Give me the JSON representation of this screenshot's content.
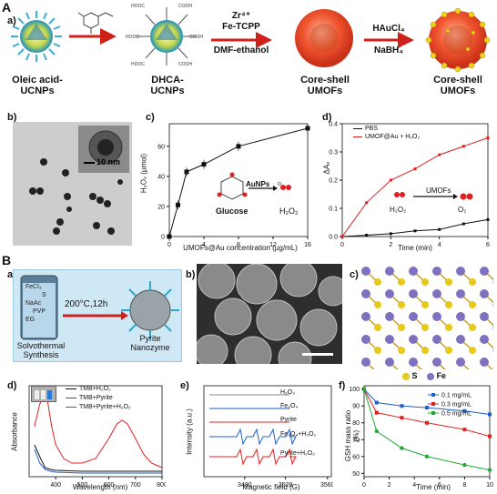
{
  "section_A": {
    "label": "A",
    "panel_label": "a)",
    "steps": [
      "Oleic acid-\nUCNPs",
      "DHCA-\nUCNPs",
      "Core-shell\nUMOFs",
      "Core-shell\nUMOFs"
    ],
    "step1_labels": [
      "Oleic acid-",
      "UCNPs"
    ],
    "step2_labels": [
      "DHCA-",
      "UCNPs"
    ],
    "step3_labels": [
      "Core-shell",
      "UMOFs"
    ],
    "step4_labels": [
      "Core-shell",
      "UMOFs"
    ],
    "arrow2_top": [
      "Zr⁴⁺",
      "Fe-TCPP"
    ],
    "arrow2_bottom": "DMF-ethanol",
    "arrow3_top": "HAuCl₄",
    "arrow3_bottom": "NaBH₄",
    "cooh": "COOH",
    "hooc": "HOOC"
  },
  "panel_Ab": {
    "label": "b)",
    "scale": "10 nm"
  },
  "panel_Ac": {
    "label": "c)",
    "ylabel": "H₂O₂ (µmol)",
    "xlabel": "UMOFs@Au concentration (µg/mL)",
    "glucose": "Glucose",
    "catalyst": "AuNPs",
    "product": "H₂O₂"
  },
  "panel_Ad": {
    "label": "d)",
    "ylabel": "ΔA₀",
    "xlabel": "Time (min)",
    "legend": [
      "PBS",
      "UMOF@Au + H₂O₂"
    ],
    "catalyst": "UMOFs",
    "reactant": "H₂O₂",
    "product": "O₂"
  },
  "section_B": {
    "label": "B",
    "panel_label": "a)",
    "vial_labels": [
      "FeCl₃",
      "S",
      "NaAc",
      "PVP",
      "EG"
    ],
    "condition": "200°C,12h",
    "left_caption": [
      "Solvothermal",
      "Synthesis"
    ],
    "right_caption": [
      "Pyrite",
      "Nanozyme"
    ]
  },
  "panel_Bb": {
    "label": "b)"
  },
  "panel_Bc": {
    "label": "c)",
    "legend": [
      "S",
      "Fe"
    ]
  },
  "panel_Bd": {
    "label": "d)",
    "ylabel": "Absorbance",
    "xlabel": "Wavelength (nm)",
    "legend": [
      "TMB+H₂O₂",
      "TMB+Pyrite",
      "TMB+Pyrite+H₂O₂"
    ]
  },
  "panel_Be": {
    "label": "e)",
    "ylabel": "Intensity (a.u.)",
    "xlabel": "Magnetic field (G)",
    "traces": [
      "H₂O₂",
      "Fe₃O₄",
      "Pyrite",
      "Fe₃O₄+H₂O₂",
      "Pyrite+H₂O₂"
    ]
  },
  "panel_Bf": {
    "label": "f)",
    "ylabel": "GSH mass ratio (%)",
    "xlabel": "Time (min)"
  },
  "colors": {
    "red": "#e02020",
    "black": "#111111",
    "blue": "#1f5fc4",
    "green": "#22aa33",
    "cyan": "#22a8c8",
    "lightblue": "#cfe8f5"
  },
  "chart_data": [
    {
      "type": "line",
      "id": "Ac",
      "x": [
        0,
        1,
        2,
        4,
        8,
        16
      ],
      "x_positions_index": [
        0,
        1,
        2,
        3,
        4,
        5
      ],
      "xticks": [
        "0",
        "4",
        "8",
        "12",
        "16"
      ],
      "yticks": [
        "0",
        "20",
        "40",
        "60"
      ],
      "ylim": [
        0,
        75
      ],
      "series": [
        {
          "values": [
            0,
            21,
            43,
            48,
            60,
            72
          ],
          "color": "#111111"
        }
      ]
    },
    {
      "type": "line",
      "id": "Ad",
      "xticks": [
        "0",
        "2",
        "4",
        "6"
      ],
      "yticks": [
        "0.0",
        "0.1",
        "0.2",
        "0.3",
        "0.4"
      ],
      "xlim": [
        0,
        6
      ],
      "ylim": [
        0,
        0.4
      ],
      "series": [
        {
          "name": "PBS",
          "x": [
            0,
            1,
            2,
            3,
            4,
            5,
            6
          ],
          "values": [
            0,
            0.005,
            0.01,
            0.02,
            0.025,
            0.045,
            0.06
          ],
          "color": "#111111"
        },
        {
          "name": "UMOF@Au + H₂O₂",
          "x": [
            0,
            1,
            2,
            3,
            4,
            5,
            6
          ],
          "values": [
            0,
            0.12,
            0.2,
            0.24,
            0.29,
            0.32,
            0.35
          ],
          "color": "#e02020"
        }
      ]
    },
    {
      "type": "line",
      "id": "Bd",
      "xticks": [
        "400",
        "500",
        "600",
        "700",
        "800"
      ],
      "xlim": [
        300,
        800
      ],
      "ylim": [
        0,
        1
      ],
      "series": [
        {
          "name": "TMB+H₂O₂",
          "x": [
            320,
            340,
            360,
            380,
            400,
            450,
            500,
            550,
            600,
            650,
            700,
            750,
            800
          ],
          "values": [
            0.35,
            0.22,
            0.1,
            0.08,
            0.07,
            0.065,
            0.06,
            0.06,
            0.06,
            0.06,
            0.06,
            0.06,
            0.06
          ],
          "color": "#111111"
        },
        {
          "name": "TMB+Pyrite",
          "x": [
            320,
            340,
            360,
            380,
            400,
            450,
            500,
            550,
            600,
            650,
            700,
            750,
            800
          ],
          "values": [
            0.3,
            0.15,
            0.08,
            0.06,
            0.05,
            0.045,
            0.04,
            0.04,
            0.04,
            0.04,
            0.04,
            0.04,
            0.04
          ],
          "color": "#1f5fc4"
        },
        {
          "name": "TMB+Pyrite+H₂O₂",
          "x": [
            320,
            340,
            355,
            370,
            385,
            400,
            430,
            460,
            500,
            550,
            600,
            630,
            650,
            670,
            700,
            730,
            760,
            800
          ],
          "values": [
            0.55,
            0.8,
            0.88,
            0.82,
            0.55,
            0.35,
            0.2,
            0.15,
            0.15,
            0.2,
            0.42,
            0.58,
            0.62,
            0.58,
            0.42,
            0.25,
            0.15,
            0.1
          ],
          "color": "#e02020"
        }
      ]
    },
    {
      "type": "line",
      "id": "Bf",
      "xticks": [
        "0",
        "2",
        "4",
        "6",
        "8",
        "10"
      ],
      "yticks": [
        "50",
        "60",
        "70",
        "80",
        "90",
        "100"
      ],
      "xlim": [
        0,
        10
      ],
      "ylim": [
        48,
        102
      ],
      "series": [
        {
          "name": "0.1 mg/mL",
          "x": [
            0,
            1,
            3,
            5,
            8,
            10
          ],
          "values": [
            100,
            92,
            90,
            89,
            87,
            85
          ],
          "color": "#1f5fc4"
        },
        {
          "name": "0.3 mg/mL",
          "x": [
            0,
            1,
            3,
            5,
            8,
            10
          ],
          "values": [
            100,
            86,
            83,
            80,
            76,
            72
          ],
          "color": "#e02020"
        },
        {
          "name": "0.5 mg/mL",
          "x": [
            0,
            1,
            3,
            5,
            8,
            10
          ],
          "values": [
            100,
            75,
            65,
            60,
            55,
            52
          ],
          "color": "#22aa33"
        }
      ]
    }
  ],
  "axis_Be": {
    "xticks": [
      "3480",
      "3520",
      "3560"
    ]
  }
}
